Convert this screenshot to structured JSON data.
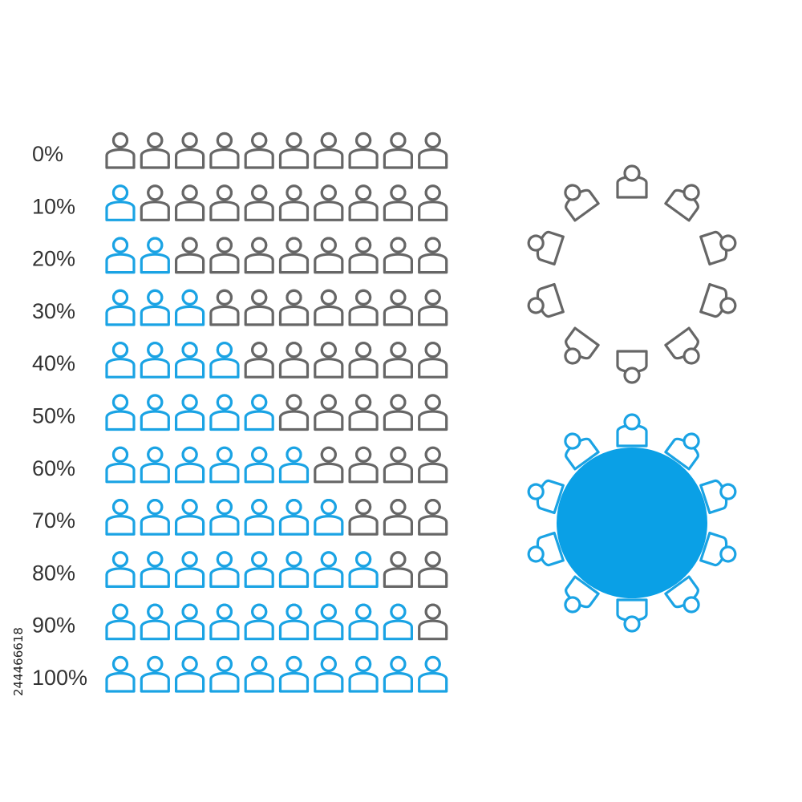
{
  "infographic": {
    "rows": [
      {
        "label": "0%",
        "filled": 0
      },
      {
        "label": "10%",
        "filled": 1
      },
      {
        "label": "20%",
        "filled": 2
      },
      {
        "label": "30%",
        "filled": 3
      },
      {
        "label": "40%",
        "filled": 4
      },
      {
        "label": "50%",
        "filled": 5
      },
      {
        "label": "60%",
        "filled": 6
      },
      {
        "label": "70%",
        "filled": 7
      },
      {
        "label": "80%",
        "filled": 8
      },
      {
        "label": "90%",
        "filled": 9
      },
      {
        "label": "100%",
        "filled": 10
      }
    ],
    "icons_per_row": 10,
    "icon_name": "person-icon",
    "colors": {
      "filled": "#1aa3e4",
      "empty": "#666666",
      "table_fill": "#0aa0e6",
      "label": "#333333"
    }
  },
  "round_tables": [
    {
      "name": "empty-round-table",
      "seats": 10,
      "style": "outline-gray"
    },
    {
      "name": "filled-round-table",
      "seats": 10,
      "style": "solid-blue"
    }
  ],
  "stock_id": "244466618"
}
